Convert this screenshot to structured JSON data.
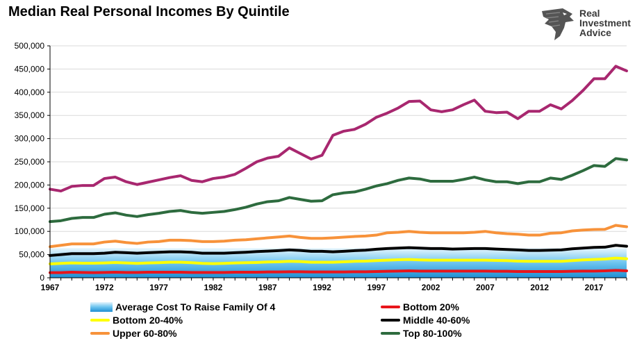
{
  "chart_data": {
    "type": "line",
    "title": "Median Real Personal Incomes By Quintile",
    "xlabel": "",
    "ylabel": "",
    "x": [
      1967,
      1968,
      1969,
      1970,
      1971,
      1972,
      1973,
      1974,
      1975,
      1976,
      1977,
      1978,
      1979,
      1980,
      1981,
      1982,
      1983,
      1984,
      1985,
      1986,
      1987,
      1988,
      1989,
      1990,
      1991,
      1992,
      1993,
      1994,
      1995,
      1996,
      1997,
      1998,
      1999,
      2000,
      2001,
      2002,
      2003,
      2004,
      2005,
      2006,
      2007,
      2008,
      2009,
      2010,
      2011,
      2012,
      2013,
      2014,
      2015,
      2016,
      2017,
      2018,
      2019,
      2020
    ],
    "xlim": [
      1967,
      2020
    ],
    "ylim": [
      0,
      500000
    ],
    "x_ticks": [
      "1967",
      "1972",
      "1977",
      "1982",
      "1987",
      "1992",
      "1997",
      "2002",
      "2007",
      "2012",
      "2017"
    ],
    "y_ticks": [
      "0",
      "50,000",
      "100,000",
      "150,000",
      "200,000",
      "250,000",
      "300,000",
      "350,000",
      "400,000",
      "450,000",
      "500,000"
    ],
    "grid": "horizontal",
    "legend_position": "bottom",
    "series": [
      {
        "name": "Average Cost To Raise Family Of 4",
        "kind": "area",
        "color": "#4fb3e8",
        "values": [
          64000,
          64000,
          64000,
          64000,
          64000,
          64000,
          64000,
          64000,
          64000,
          64000,
          64000,
          64000,
          64000,
          64000,
          64000,
          64000,
          64000,
          64000,
          64000,
          64000,
          64000,
          64000,
          64000,
          64000,
          64000,
          64000,
          64000,
          64000,
          64000,
          64000,
          64000,
          64000,
          64000,
          64000,
          64000,
          64000,
          64000,
          64000,
          64000,
          64000,
          64000,
          64000,
          64000,
          64000,
          64000,
          64000,
          64000,
          64000,
          64000,
          64000,
          64000,
          64000,
          64000,
          64000
        ]
      },
      {
        "name": "Bottom 20%",
        "kind": "line",
        "color": "#e8151b",
        "values": [
          11000,
          11000,
          12000,
          11500,
          11000,
          11500,
          12000,
          11500,
          11500,
          12000,
          12000,
          12000,
          12000,
          11500,
          11500,
          11500,
          11500,
          12000,
          12000,
          12000,
          12500,
          12500,
          13000,
          13000,
          12500,
          12500,
          12500,
          12500,
          13000,
          13000,
          13500,
          14000,
          14500,
          15000,
          14500,
          14500,
          14500,
          14500,
          14500,
          14500,
          14500,
          14000,
          14000,
          13500,
          13500,
          13500,
          13500,
          13500,
          14000,
          14500,
          14500,
          15000,
          16000,
          15000
        ]
      },
      {
        "name": "Bottom 20-40%",
        "kind": "line",
        "color": "#ffff00",
        "values": [
          30000,
          31000,
          32000,
          31500,
          31500,
          32000,
          33000,
          32000,
          31000,
          32000,
          32500,
          33500,
          33500,
          32500,
          31000,
          30500,
          31000,
          32000,
          32500,
          33000,
          34000,
          34500,
          35500,
          35000,
          33500,
          33500,
          33500,
          34500,
          35500,
          36000,
          37000,
          38000,
          39000,
          39500,
          38500,
          38000,
          38000,
          38000,
          38000,
          38000,
          38000,
          37500,
          37000,
          36000,
          35500,
          35500,
          35500,
          35500,
          37000,
          38500,
          39500,
          40500,
          42500,
          41000
        ]
      },
      {
        "name": "Middle 40-60%",
        "kind": "line",
        "color": "#000000",
        "values": [
          48000,
          50000,
          52000,
          52000,
          52000,
          53000,
          55000,
          54000,
          53000,
          54000,
          55000,
          56000,
          56000,
          55000,
          53000,
          53000,
          53000,
          54000,
          55000,
          56500,
          57500,
          58500,
          60000,
          59000,
          57000,
          57000,
          56000,
          57000,
          58500,
          59500,
          61500,
          63000,
          64000,
          65000,
          64000,
          63000,
          63000,
          62000,
          62500,
          63000,
          63000,
          62000,
          61000,
          60000,
          59000,
          59000,
          59500,
          60000,
          62500,
          64000,
          65500,
          66000,
          70000,
          68000
        ]
      },
      {
        "name": "Upper 60-80%",
        "kind": "line",
        "color": "#f7923a",
        "values": [
          67000,
          70000,
          73000,
          73000,
          73000,
          77000,
          79000,
          76000,
          74000,
          77000,
          78000,
          81000,
          81000,
          80000,
          78000,
          78000,
          79000,
          81000,
          82000,
          84000,
          86000,
          88000,
          90000,
          87000,
          85000,
          85000,
          86000,
          87500,
          89000,
          90000,
          92000,
          97000,
          98000,
          100000,
          98000,
          97000,
          97000,
          97000,
          97000,
          98000,
          100000,
          97000,
          95000,
          94000,
          92000,
          92000,
          96000,
          97000,
          101000,
          103000,
          104000,
          104500,
          113000,
          110000
        ]
      },
      {
        "name": "Top 80-100%",
        "kind": "line",
        "color": "#2d6b3e",
        "values": [
          121000,
          123000,
          128000,
          130000,
          130000,
          137000,
          140000,
          135000,
          132000,
          136000,
          139000,
          143000,
          145000,
          141000,
          139000,
          141000,
          143000,
          147000,
          152000,
          159000,
          164000,
          166000,
          173000,
          169000,
          165000,
          166000,
          179000,
          183000,
          185000,
          191000,
          198000,
          203000,
          210000,
          215000,
          213000,
          208000,
          208000,
          208000,
          212000,
          217000,
          211000,
          207000,
          207000,
          203000,
          207000,
          207000,
          215000,
          212000,
          221000,
          231000,
          242000,
          240000,
          257000,
          254000
        ]
      },
      {
        "name": "",
        "kind": "line",
        "color": "#a8276f",
        "values": [
          191000,
          187000,
          197000,
          199000,
          199000,
          214000,
          217000,
          207000,
          201000,
          206000,
          211000,
          216000,
          220000,
          210000,
          207000,
          214000,
          217000,
          223000,
          236000,
          250000,
          258000,
          262000,
          280000,
          268000,
          256000,
          264000,
          307000,
          316000,
          320000,
          331000,
          346000,
          355000,
          366000,
          380000,
          381000,
          362000,
          358000,
          362000,
          373000,
          383000,
          359000,
          356000,
          357000,
          343000,
          359000,
          359000,
          373000,
          364000,
          382000,
          404000,
          429000,
          429000,
          456000,
          446000
        ]
      }
    ]
  }
}
